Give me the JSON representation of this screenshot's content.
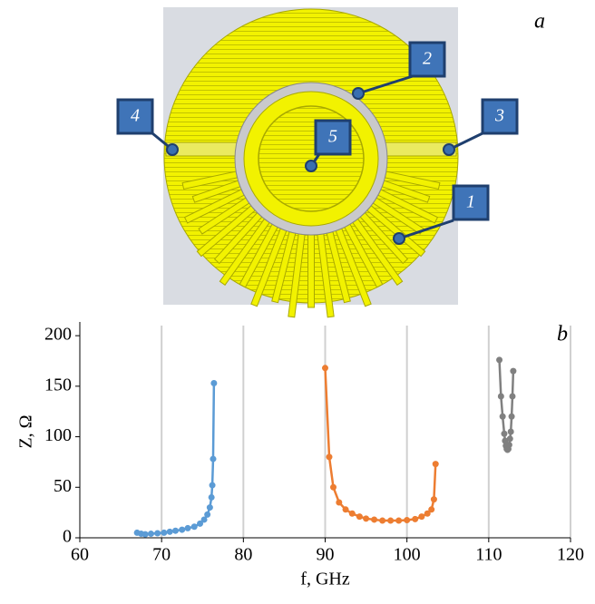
{
  "figure": {
    "panel_a_label": "a",
    "panel_b_label": "b",
    "callouts": [
      "1",
      "2",
      "3",
      "4",
      "5"
    ]
  },
  "chart_data": {
    "type": "line",
    "xlabel": "f, GHz",
    "ylabel": "Z, Ω",
    "xlim": [
      60,
      120
    ],
    "ylim": [
      0,
      210
    ],
    "xticks": [
      60,
      70,
      80,
      90,
      100,
      110,
      120
    ],
    "yticks": [
      0,
      50,
      100,
      150,
      200
    ],
    "grid": true,
    "series": [
      {
        "color": "#5b9bd5",
        "x": [
          67,
          67.5,
          68,
          68.7,
          69.5,
          70.3,
          71,
          71.7,
          72.5,
          73.2,
          74,
          74.7,
          75.2,
          75.6,
          75.9,
          76.1,
          76.2,
          76.3,
          76.4
        ],
        "values": [
          5,
          4,
          3.5,
          4,
          4.5,
          5,
          6,
          7,
          8,
          9.5,
          11,
          14,
          18,
          23,
          30,
          40,
          52,
          78,
          153
        ]
      },
      {
        "color": "#ed7d31",
        "x": [
          90,
          90.5,
          91,
          91.7,
          92.5,
          93.3,
          94.2,
          95,
          96,
          97,
          98,
          99,
          100,
          101,
          101.8,
          102.5,
          103,
          103.3,
          103.5
        ],
        "values": [
          168,
          80,
          50,
          35,
          28,
          24,
          21,
          19,
          18,
          17,
          17,
          17,
          17.5,
          18.5,
          21,
          24,
          28,
          38,
          73
        ]
      },
      {
        "color": "#808080",
        "x": [
          111.3,
          111.5,
          111.7,
          111.9,
          112,
          112.1,
          112.2,
          112.3,
          112.4,
          112.5,
          112.6,
          112.7,
          112.8,
          112.9,
          113
        ],
        "values": [
          176,
          140,
          120,
          103,
          96,
          91,
          88,
          87,
          88,
          92,
          98,
          105,
          120,
          140,
          165
        ]
      }
    ]
  }
}
